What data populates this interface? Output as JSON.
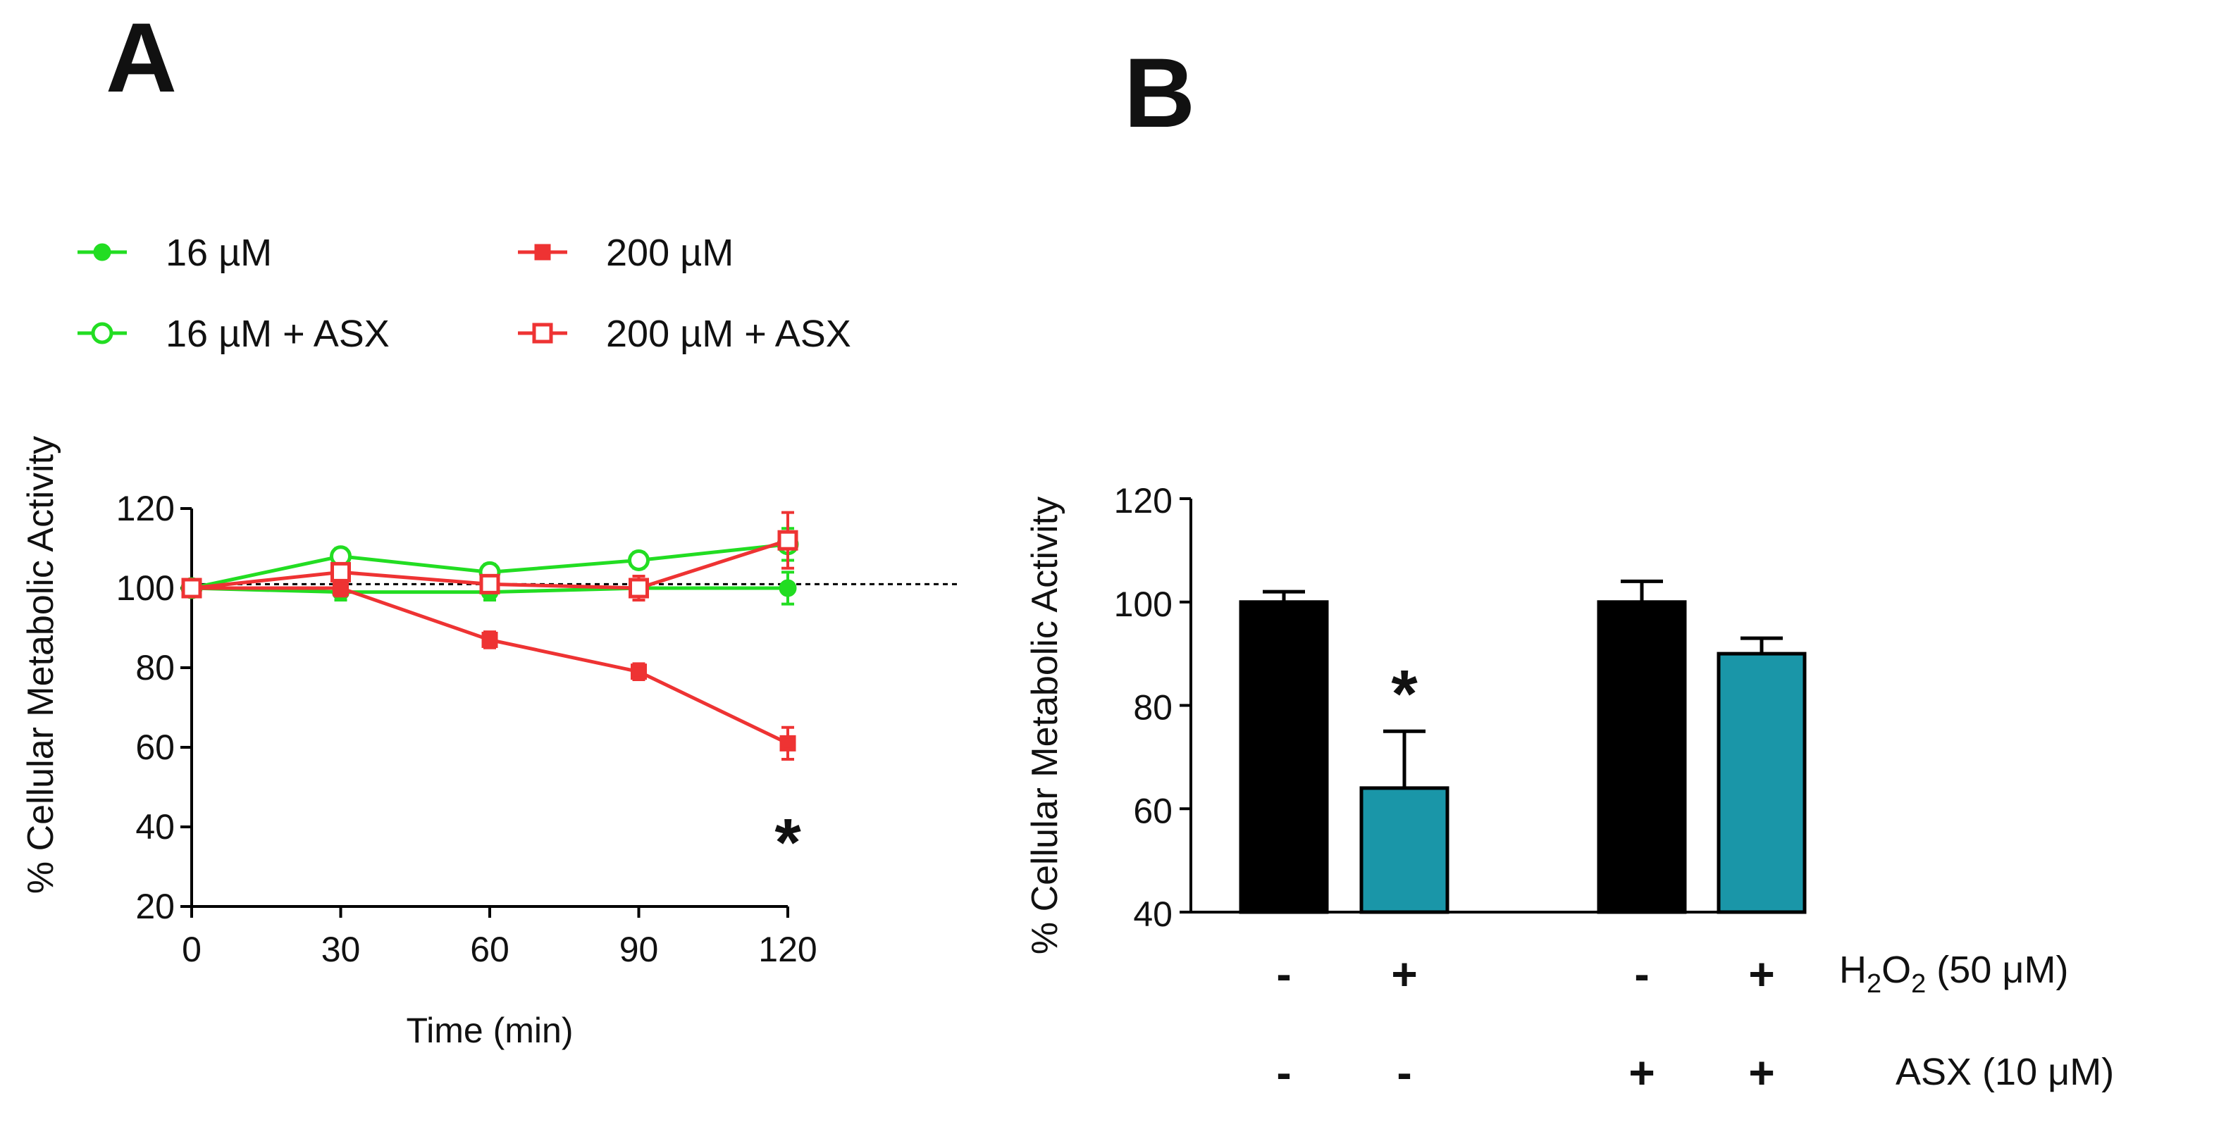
{
  "panels": [
    {
      "letter": "A",
      "chart_data": {
        "type": "line",
        "xlabel": "Time (min)",
        "ylabel": "% Cellular Metabolic Activity",
        "xlim": [
          0,
          120
        ],
        "ylim": [
          20,
          120
        ],
        "xticks": [
          "0",
          "30",
          "60",
          "90",
          "120"
        ],
        "yticks": [
          "20",
          "40",
          "60",
          "80",
          "100",
          "120"
        ],
        "reference_line": 101,
        "legend_placement": "top",
        "x": [
          0,
          30,
          60,
          90,
          120
        ],
        "series": [
          {
            "name": "16 µM",
            "color": "#22dd22",
            "marker": "filled-circle",
            "values": [
              100,
              99,
              99,
              100,
              100
            ],
            "errors": [
              2,
              2,
              2,
              2,
              4
            ]
          },
          {
            "name": "200 µM",
            "color": "#ee3333",
            "marker": "filled-square",
            "values": [
              100,
              100,
              87,
              79,
              61
            ],
            "errors": [
              2,
              2,
              2,
              2,
              4
            ]
          },
          {
            "name": "16 µM  + ASX",
            "color": "#22dd22",
            "marker": "open-circle",
            "values": [
              100,
              108,
              104,
              107,
              111
            ],
            "errors": [
              2,
              2,
              2,
              2,
              4
            ]
          },
          {
            "name": "200 µM + ASX",
            "color": "#ee3333",
            "marker": "open-square",
            "values": [
              100,
              104,
              101,
              100,
              112
            ],
            "errors": [
              2,
              2,
              2,
              3,
              7
            ]
          }
        ],
        "annotations": [
          {
            "text": "*",
            "x": 120,
            "y": 40
          }
        ]
      }
    },
    {
      "letter": "B",
      "chart_data": {
        "type": "bar",
        "ylabel": "% Cellular Metabolic Activity",
        "ylim": [
          40,
          120
        ],
        "yticks": [
          "40",
          "60",
          "80",
          "100",
          "120"
        ],
        "groups": 2,
        "bars": [
          {
            "value": 100,
            "error": 2,
            "color": "#000000",
            "h2o2": "-",
            "asx": "-"
          },
          {
            "value": 64,
            "error": 11,
            "color": "#1a96a8",
            "h2o2": "+",
            "asx": "-",
            "annotation": "*"
          },
          {
            "value": 100,
            "error": 4,
            "color": "#000000",
            "h2o2": "-",
            "asx": "+"
          },
          {
            "value": 90,
            "error": 3,
            "color": "#1a96a8",
            "h2o2": "+",
            "asx": "+"
          }
        ],
        "conditions": {
          "h2o2_prefix": "H",
          "h2o2_sub": "2",
          "h2o2_mid": "O",
          "h2o2_sub2": "2",
          "h2o2_suffix": " (50 μM)",
          "asx": "ASX (10 μM)"
        }
      }
    }
  ]
}
